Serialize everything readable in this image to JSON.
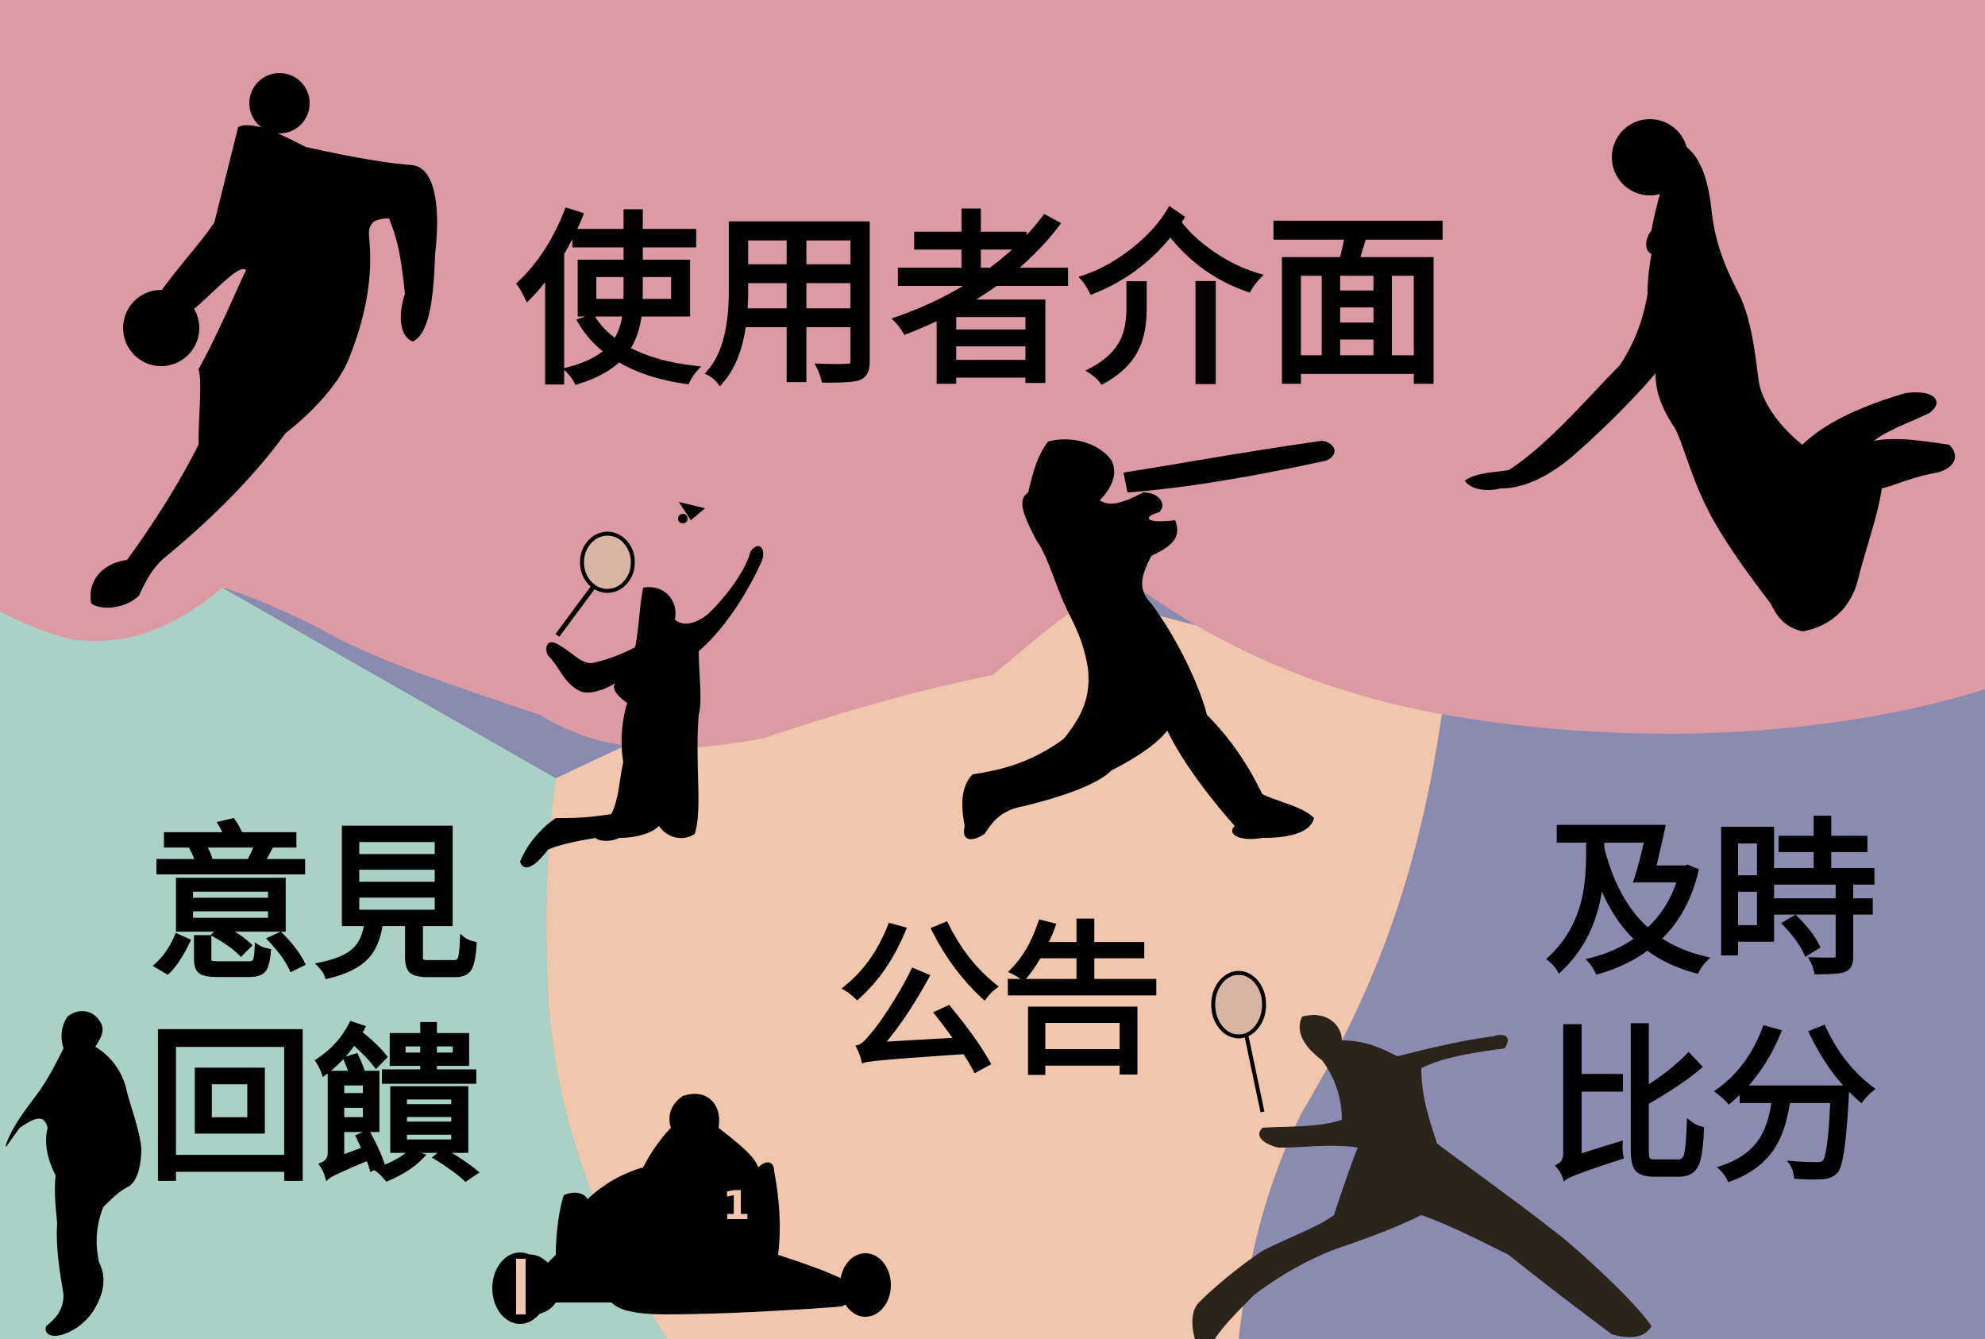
{
  "title": "使用者介面",
  "panels": {
    "feedback": {
      "line1": "意見",
      "line2": "回饋"
    },
    "announcements": {
      "label": "公告"
    },
    "live_scores": {
      "line1": "及時",
      "line2": "比分"
    }
  },
  "colors": {
    "region_top": "#DC9AA4",
    "region_left": "#AAD1C6",
    "region_center": "#F0C6AC",
    "region_right": "#8A8BAE",
    "silhouette": "#000000",
    "tennis_player": "#2A241C",
    "racket_head": "#D8B4A4"
  },
  "icons": [
    "basketball-player-dribbling-icon",
    "basketball-player-dunking-icon",
    "baseball-batter-icon",
    "badminton-player-icon",
    "shuttlecock-icon",
    "baseball-pitcher-icon",
    "go-kart-driver-icon",
    "tennis-player-icon"
  ],
  "kart_number": "1"
}
